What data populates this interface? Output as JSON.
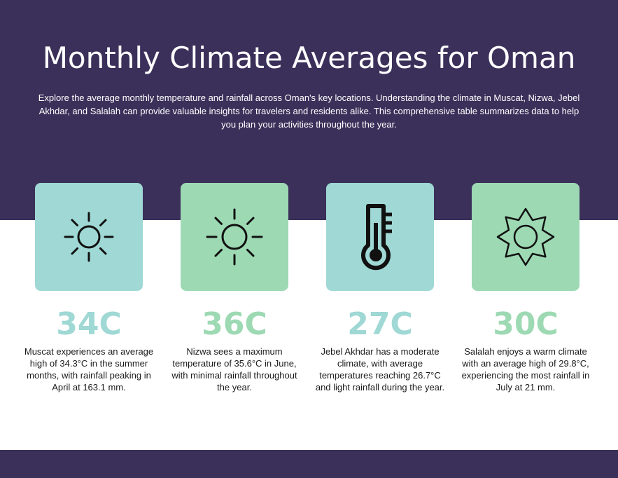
{
  "header": {
    "title": "Monthly Climate Averages for Oman",
    "intro": "Explore the average monthly temperature and rainfall across Oman's key locations. Understanding the climate in Muscat, Nizwa, Jebel Akhdar, and Salalah can provide valuable insights for travelers and residents alike. This comprehensive table summarizes data to help you plan your activities throughout the year."
  },
  "colors": {
    "band": "#3b305a",
    "teal": "#9fd8d4",
    "green": "#9dd9b3",
    "icon": "#111111"
  },
  "cards": [
    {
      "icon": "sun-icon",
      "value": "34C",
      "description": "Muscat experiences an average high of 34.3°C in the summer months, with rainfall peaking in April at 163.1 mm."
    },
    {
      "icon": "sun-icon",
      "value": "36C",
      "description": "Nizwa sees a maximum temperature of 35.6°C in June, with minimal rainfall throughout the year."
    },
    {
      "icon": "thermometer-icon",
      "value": "27C",
      "description": "Jebel Akhdar has a moderate climate, with average temperatures reaching 26.7°C and light rainfall during the year."
    },
    {
      "icon": "star-sun-icon",
      "value": "30C",
      "description": "Salalah enjoys a warm climate with an average high of 29.8°C, experiencing the most rainfall in July at 21 mm."
    }
  ]
}
